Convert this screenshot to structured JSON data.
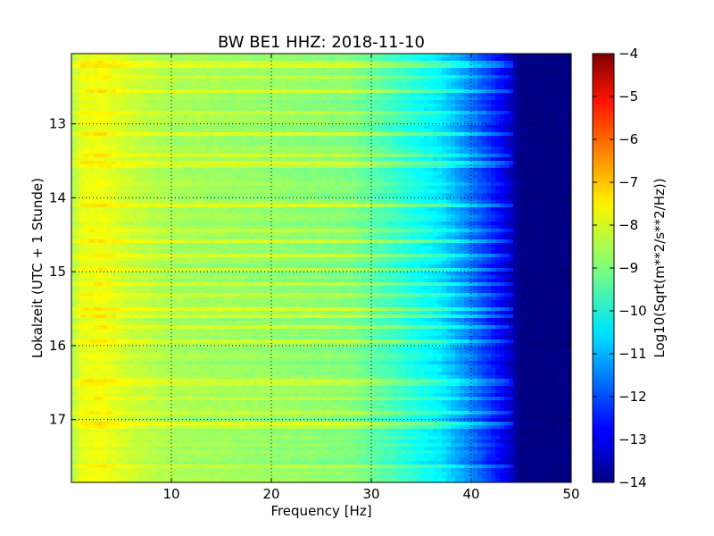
{
  "chart_data": {
    "type": "heatmap",
    "title": "BW BE1 HHZ: 2018-11-10",
    "xlabel": "Frequency [Hz]",
    "ylabel": "Lokalzeit (UTC + 1 Stunde)",
    "colorbar_label": "Log10(Sqrt(m**2/s**2/Hz))",
    "xlim": [
      0,
      50
    ],
    "ylim": [
      17.85,
      12.05
    ],
    "y_inverted": true,
    "x_ticks": [
      10,
      20,
      30,
      40,
      50
    ],
    "x_tick_labels": [
      "10",
      "20",
      "30",
      "40",
      "50"
    ],
    "y_ticks": [
      13,
      14,
      15,
      16,
      17
    ],
    "y_tick_labels": [
      "13",
      "14",
      "15",
      "16",
      "17"
    ],
    "grid": true,
    "colormap": "jet",
    "color_range": [
      -14,
      -4
    ],
    "colorbar_ticks": [
      -4,
      -5,
      -6,
      -7,
      -8,
      -9,
      -10,
      -11,
      -12,
      -13,
      -14
    ],
    "colorbar_tick_labels": [
      "−4",
      "−5",
      "−6",
      "−7",
      "−8",
      "−9",
      "−10",
      "−11",
      "−12",
      "−13",
      "−14"
    ],
    "spectral_profile": {
      "frequency_hz": [
        0,
        1,
        3,
        6,
        10,
        20,
        28,
        33,
        37,
        40,
        43,
        45,
        50
      ],
      "log10_psd": [
        -8.6,
        -8.0,
        -7.9,
        -8.3,
        -8.6,
        -8.8,
        -9.0,
        -9.8,
        -10.5,
        -11.6,
        -12.8,
        -14,
        -14
      ]
    },
    "high_energy_times_hour": [
      12.2,
      12.35,
      12.55,
      12.85,
      13.15,
      13.42,
      13.55,
      14.1,
      14.45,
      14.6,
      14.78,
      14.97,
      15.15,
      15.3,
      15.5,
      15.62,
      15.75,
      15.95,
      16.5,
      16.72,
      16.9,
      17.08,
      17.65
    ]
  }
}
